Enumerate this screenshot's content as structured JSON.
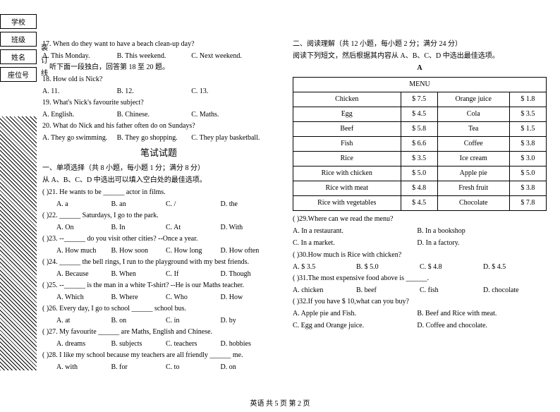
{
  "sidebar": {
    "labels": [
      "学校",
      "班级",
      "姓名",
      "座位号"
    ]
  },
  "vertical_cut": [
    "装",
    "订",
    "线"
  ],
  "left": {
    "q17": "17. When do they want to have a beach clean-up day?",
    "q17opts": [
      "A. This Monday.",
      "B. This weekend.",
      "C. Next weekend."
    ],
    "listen_instr": "听下面一段独白，回答第 18 至 20 题。",
    "q18": "18. How old is Nick?",
    "q18opts": [
      "A. 11.",
      "B. 12.",
      "C. 13."
    ],
    "q19": "19. What's Nick's favourite subject?",
    "q19opts": [
      "A. English.",
      "B. Chinese.",
      "C. Maths."
    ],
    "q20": "20. What do Nick and his father often do on Sundays?",
    "q20opts": [
      "A. They go swimming.",
      "B. They go shopping.",
      "C. They play basketball."
    ],
    "written_title": "笔试试题",
    "mc_title": "一、单项选择（共 8 小题，每小题 1 分；满分 8 分）",
    "mc_instr": "从 A、B、C、D 中选出可以填入空白处的最佳选项。",
    "q21": "(    )21. He wants to be ______ actor in films.",
    "q21opts": [
      "A. a",
      "B. an",
      "C. /",
      "D. the"
    ],
    "q22": "(    )22. ______ Saturdays, I go to the park.",
    "q22opts": [
      "A. On",
      "B. In",
      "C. At",
      "D. With"
    ],
    "q23": "(    )23. --______ do you visit other cities?    --Once a year.",
    "q23opts": [
      "A. How much",
      "B. How soon",
      "C. How long",
      "D. How often"
    ],
    "q24": "(    )24. ______ the bell rings, I run to the playground with my best friends.",
    "q24opts": [
      "A. Because",
      "B. When",
      "C. If",
      "D. Though"
    ],
    "q25": "(    )25. --______ is the man in a white T-shirt?    --He is our Maths teacher.",
    "q25opts": [
      "A. Which",
      "B. Where",
      "C. Who",
      "D. How"
    ],
    "q26": "(    )26. Every day, I go to school ______ school bus.",
    "q26opts": [
      "A. at",
      "B. on",
      "C. in",
      "D. by"
    ],
    "q27": "(    )27. My favourite ______ are Maths, English and Chinese.",
    "q27opts": [
      "A. dreams",
      "B. subjects",
      "C. teachers",
      "D. hobbies"
    ],
    "q28": "(    )28. I like my school because my teachers are all friendly ______ me.",
    "q28opts": [
      "A. with",
      "B. for",
      "C. to",
      "D. on"
    ]
  },
  "right": {
    "read_title": "二、阅读理解（共 12 小题，每小题 2 分；满分 24 分）",
    "read_instr": "阅读下列短文，然后根据其内容从 A、B、C、D 中选出最佳选项。",
    "passage_label": "A",
    "menu_title": "MENU",
    "menu_rows": [
      [
        "Chicken",
        "$ 7.5",
        "Orange juice",
        "$ 1.8"
      ],
      [
        "Egg",
        "$ 4.5",
        "Cola",
        "$ 3.5"
      ],
      [
        "Beef",
        "$ 5.8",
        "Tea",
        "$ 1.5"
      ],
      [
        "Fish",
        "$ 6.6",
        "Coffee",
        "$ 3.8"
      ],
      [
        "Rice",
        "$ 3.5",
        "Ice cream",
        "$ 3.0"
      ],
      [
        "Rice with chicken",
        "$ 5.0",
        "Apple pie",
        "$ 5.0"
      ],
      [
        "Rice with meat",
        "$ 4.8",
        "Fresh fruit",
        "$ 3.8"
      ],
      [
        "Rice with vegetables",
        "$ 4.5",
        "Chocolate",
        "$ 7.8"
      ]
    ],
    "q29": "(    )29.Where can we read the menu?",
    "q29a": "A. In a restaurant.",
    "q29b": "B. In a bookshop",
    "q29c": "C. In a market.",
    "q29d": "D. In a factory.",
    "q30": "(    )30.How much is Rice with chicken?",
    "q30opts": [
      "A. $ 3.5",
      "B. $ 5.0",
      "C. $ 4.8",
      "D. $ 4.5"
    ],
    "q31": "(    )31.The most expensive food above is ______.",
    "q31opts": [
      "A. chicken",
      "B. beef",
      "C. fish",
      "D. chocolate"
    ],
    "q32": "(    )32.If you have $ 10,what can you buy?",
    "q32a": "A. Apple pie and Fish.",
    "q32b": "B. Beef and Rice with meat.",
    "q32c": "C. Egg and Orange juice.",
    "q32d": "D. Coffee and chocolate."
  },
  "footer": "英语 共 5 页 第 2 页"
}
